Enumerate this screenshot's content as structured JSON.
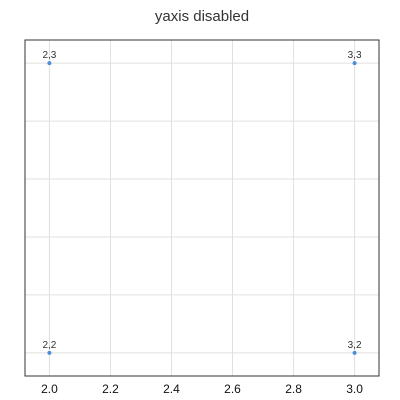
{
  "chart_data": {
    "type": "scatter",
    "title": "yaxis disabled",
    "xlabel": "",
    "ylabel": "",
    "x_ticks": [
      "2.0",
      "2.2",
      "2.4",
      "2.6",
      "2.8",
      "3.0"
    ],
    "xlim": [
      1.92,
      3.08
    ],
    "ylim": [
      1.92,
      3.08
    ],
    "y_axis_visible": false,
    "grid": true,
    "points": [
      {
        "x": 2,
        "y": 3,
        "label": "2,3"
      },
      {
        "x": 3,
        "y": 3,
        "label": "3,3"
      },
      {
        "x": 2,
        "y": 2,
        "label": "2,2"
      },
      {
        "x": 3,
        "y": 2,
        "label": "3,2"
      }
    ],
    "colors": {
      "point": "#4a90d9",
      "grid": "#e0e0e0",
      "frame": "#333333"
    }
  }
}
